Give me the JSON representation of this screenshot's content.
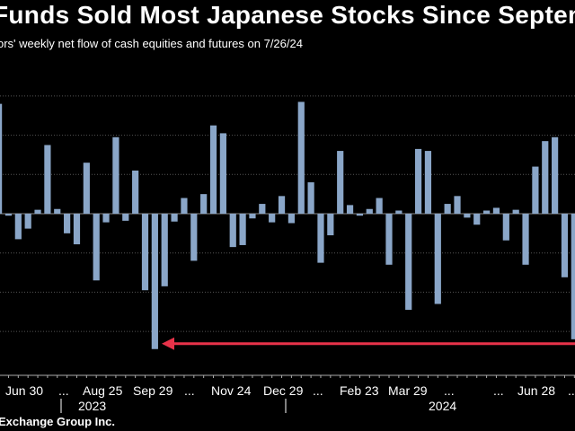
{
  "chart_data": {
    "type": "bar",
    "title": "Funds Sold Most Japanese Stocks Since Septem",
    "subtitle": "ors' weekly net flow of cash equities and futures on 7/26/24",
    "source": "Exchange Group Inc.",
    "x_tick_labels": [
      "Jun 30",
      "...",
      "Aug 25",
      "Sep 29",
      "...",
      "Nov 24",
      "Dec 29",
      "...",
      "Feb 23",
      "Mar 29",
      "...",
      "...",
      "Jun 28",
      "..."
    ],
    "year_labels": [
      "2023",
      "2024"
    ],
    "annotation": "arrow marking lowest weekly flow",
    "grid": true,
    "values": [
      28,
      -0.5,
      -6.5,
      -3.8,
      1,
      17.5,
      1.2,
      -5,
      -7.8,
      13,
      -17,
      -2.2,
      19.5,
      -1.8,
      11,
      -19.5,
      -34.5,
      -18.5,
      -2,
      4,
      -12,
      5,
      22.5,
      20.5,
      -8.5,
      -8,
      -1.2,
      2.5,
      -2.2,
      4.5,
      -2.4,
      28.5,
      8,
      -12.5,
      -5.5,
      16,
      2.2,
      -0.5,
      1.2,
      4,
      -13,
      0.8,
      -24.5,
      16.5,
      16,
      -23,
      2.5,
      4.5,
      -1,
      -2.8,
      0.8,
      1.5,
      -6.8,
      1,
      -13,
      12,
      18.5,
      19.5,
      -16.2,
      -32
    ]
  },
  "colors": {
    "bar": "#8aa6c8",
    "arrow": "#e8334a",
    "grid": "#555555",
    "axis": "#aaaaaa"
  }
}
